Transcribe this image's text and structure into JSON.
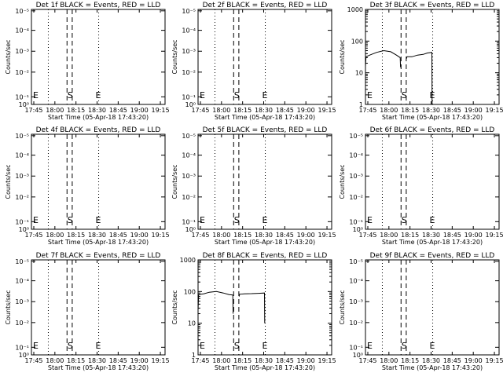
{
  "chart_data": [
    {
      "type": "line",
      "title": "Det 1f BLACK = Events, RED = LLD",
      "xlabel": "Start Time (05-Apr-18 17:43:20)",
      "ylabel": "Counts/sec",
      "xticks": [
        "17:45",
        "18:00",
        "18:15",
        "18:30",
        "18:45",
        "19:00",
        "19:15"
      ],
      "scale": "symlog",
      "yticks": [
        "10⁰",
        "10⁻¹",
        "10⁻²",
        "10⁻³",
        "10⁻⁴",
        "10⁻⁵"
      ],
      "markers": {
        "E1": "E",
        "S": "S",
        "E2": "E"
      },
      "series": []
    },
    {
      "type": "line",
      "title": "Det 2f BLACK = Events, RED = LLD",
      "xlabel": "Start Time (05-Apr-18 17:43:20)",
      "ylabel": "Counts/sec",
      "xticks": [
        "17:45",
        "18:00",
        "18:15",
        "18:30",
        "18:45",
        "19:00",
        "19:15"
      ],
      "scale": "symlog",
      "yticks": [
        "10⁰",
        "10⁻¹",
        "10⁻²",
        "10⁻³",
        "10⁻⁴",
        "10⁻⁵"
      ],
      "markers": {
        "E1": "E",
        "S": "S",
        "E2": "E"
      },
      "series": []
    },
    {
      "type": "line",
      "title": "Det 3f BLACK = Events, RED = LLD",
      "xlabel": "Start Time (05-Apr-18 17:43:20)",
      "ylabel": "Counts/sec",
      "xticks": [
        "17:45",
        "18:00",
        "18:15",
        "18:30",
        "18:45",
        "19:00",
        "19:15"
      ],
      "scale": "log",
      "yticks": [
        "1000",
        "100",
        "10",
        "1"
      ],
      "ylim": [
        1,
        1000
      ],
      "markers": {
        "E1": "E",
        "S": "S",
        "E2": "E"
      },
      "series": [
        {
          "color": "#000",
          "segments": [
            {
              "x": [
                0,
                0.4,
                3,
                8,
                13,
                18,
                22,
                24.7,
                24.9
              ],
              "y": [
                16,
                32,
                36,
                44,
                50,
                46,
                36,
                30,
                15
              ]
            },
            {
              "x": [
                29.2,
                29.5,
                33,
                37,
                41,
                44,
                47.2,
                47.4
              ],
              "y": [
                28,
                32,
                32,
                36,
                38,
                42,
                44,
                1
              ]
            }
          ]
        }
      ]
    },
    {
      "type": "line",
      "title": "Det 4f BLACK = Events, RED = LLD",
      "xlabel": "Start Time (05-Apr-18 17:43:20)",
      "ylabel": "Counts/sec",
      "xticks": [
        "17:45",
        "18:00",
        "18:15",
        "18:30",
        "18:45",
        "19:00",
        "19:15"
      ],
      "scale": "symlog",
      "yticks": [
        "10⁰",
        "10⁻¹",
        "10⁻²",
        "10⁻³",
        "10⁻⁴",
        "10⁻⁵"
      ],
      "markers": {
        "E1": "E",
        "S": "S",
        "E2": "E"
      },
      "series": []
    },
    {
      "type": "line",
      "title": "Det 5f BLACK = Events, RED = LLD",
      "xlabel": "Start Time (05-Apr-18 17:43:20)",
      "ylabel": "Counts/sec",
      "xticks": [
        "17:45",
        "18:00",
        "18:15",
        "18:30",
        "18:45",
        "19:00",
        "19:15"
      ],
      "scale": "symlog",
      "yticks": [
        "10⁰",
        "10⁻¹",
        "10⁻²",
        "10⁻³",
        "10⁻⁴",
        "10⁻⁵"
      ],
      "markers": {
        "E1": "E",
        "S": "S",
        "E2": "E"
      },
      "series": []
    },
    {
      "type": "line",
      "title": "Det 6f BLACK = Events, RED = LLD",
      "xlabel": "Start Time (05-Apr-18 17:43:20)",
      "ylabel": "Counts/sec",
      "xticks": [
        "17:45",
        "18:00",
        "18:15",
        "18:30",
        "18:45",
        "19:00",
        "19:15"
      ],
      "scale": "symlog",
      "yticks": [
        "10⁰",
        "10⁻¹",
        "10⁻²",
        "10⁻³",
        "10⁻⁴",
        "10⁻⁵"
      ],
      "markers": {
        "E1": "E",
        "S": "S",
        "E2": "E"
      },
      "series": []
    },
    {
      "type": "line",
      "title": "Det 7f BLACK = Events, RED = LLD",
      "xlabel": "Start Time (05-Apr-18 17:43:20)",
      "ylabel": "Counts/sec",
      "xticks": [
        "17:45",
        "18:00",
        "18:15",
        "18:30",
        "18:45",
        "19:00",
        "19:15"
      ],
      "scale": "symlog",
      "yticks": [
        "10⁰",
        "10⁻¹",
        "10⁻²",
        "10⁻³",
        "10⁻⁴",
        "10⁻⁵"
      ],
      "markers": {
        "E1": "E",
        "S": "S",
        "E2": "E"
      },
      "series": []
    },
    {
      "type": "line",
      "title": "Det 8f BLACK = Events, RED = LLD",
      "xlabel": "Start Time (05-Apr-18 17:43:20)",
      "ylabel": "Counts/sec",
      "xticks": [
        "17:45",
        "18:00",
        "18:15",
        "18:30",
        "18:45",
        "19:00",
        "19:15"
      ],
      "scale": "log",
      "yticks": [
        "1000",
        "100",
        "10",
        "1"
      ],
      "ylim": [
        1,
        1000
      ],
      "markers": {
        "E1": "E",
        "S": "S",
        "E2": "E"
      },
      "series": [
        {
          "color": "#000",
          "segments": [
            {
              "x": [
                0,
                0.4,
                4,
                8,
                13,
                18,
                22,
                24.7,
                24.9
              ],
              "y": [
                25,
                80,
                85,
                95,
                100,
                90,
                80,
                78,
                20
              ]
            },
            {
              "x": [
                29.2,
                29.5,
                33,
                38,
                43,
                47.2,
                47.4
              ],
              "y": [
                70,
                82,
                85,
                86,
                88,
                90,
                10
              ]
            }
          ]
        }
      ]
    },
    {
      "type": "line",
      "title": "Det 9f BLACK = Events, RED = LLD",
      "xlabel": "Start Time (05-Apr-18 17:43:20)",
      "ylabel": "Counts/sec",
      "xticks": [
        "17:45",
        "18:00",
        "18:15",
        "18:30",
        "18:45",
        "19:00",
        "19:15"
      ],
      "scale": "symlog",
      "yticks": [
        "10⁰",
        "10⁻¹",
        "10⁻²",
        "10⁻³",
        "10⁻⁴",
        "10⁻⁵"
      ],
      "markers": {
        "E1": "E",
        "S": "S",
        "E2": "E"
      },
      "series": []
    }
  ]
}
